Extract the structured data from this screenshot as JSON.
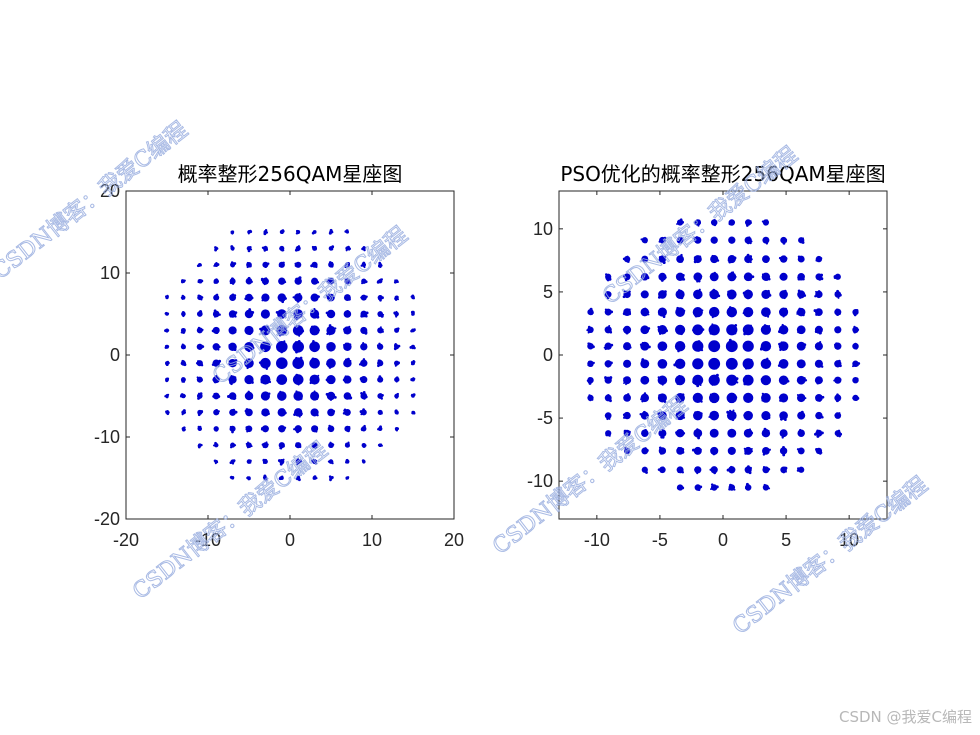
{
  "colors": {
    "marker": "#0000cc",
    "axis": "#262626",
    "watermark": "#9aaee0",
    "footer": "#b8b8b8"
  },
  "watermark_text": "CSDN博客：我爱C编程",
  "footer_text": "CSDN @我爱C编程",
  "chart_data": [
    {
      "type": "scatter",
      "title": "概率整形256QAM星座图",
      "xlabel": "",
      "ylabel": "",
      "xlim": [
        -20,
        20
      ],
      "ylim": [
        -20,
        20
      ],
      "xticks": [
        -20,
        -10,
        0,
        10,
        20
      ],
      "yticks": [
        -20,
        -10,
        0,
        10,
        20
      ],
      "grid": false,
      "levels": [
        -15,
        -13,
        -11,
        -9,
        -7,
        -5,
        -3,
        -1,
        1,
        3,
        5,
        7,
        9,
        11,
        13,
        15
      ],
      "support_radius": 17,
      "description_series": "16x16 grid constellation, probabilistically shaped (denser clusters near origin)"
    },
    {
      "type": "scatter",
      "title": "PSO优化的概率整形256QAM星座图",
      "xlabel": "",
      "ylabel": "",
      "xlim": [
        -13,
        13
      ],
      "ylim": [
        -13,
        13
      ],
      "xticks": [
        -10,
        -5,
        0,
        5,
        10
      ],
      "yticks": [
        -10,
        -5,
        0,
        5,
        10
      ],
      "grid": false,
      "levels": [
        -10.5,
        -9.1,
        -7.6,
        -6.2,
        -4.8,
        -3.4,
        -2.0,
        -0.7,
        0.7,
        2.0,
        3.4,
        4.8,
        6.2,
        7.6,
        9.1,
        10.5
      ],
      "support_radius": 11.4
    }
  ]
}
